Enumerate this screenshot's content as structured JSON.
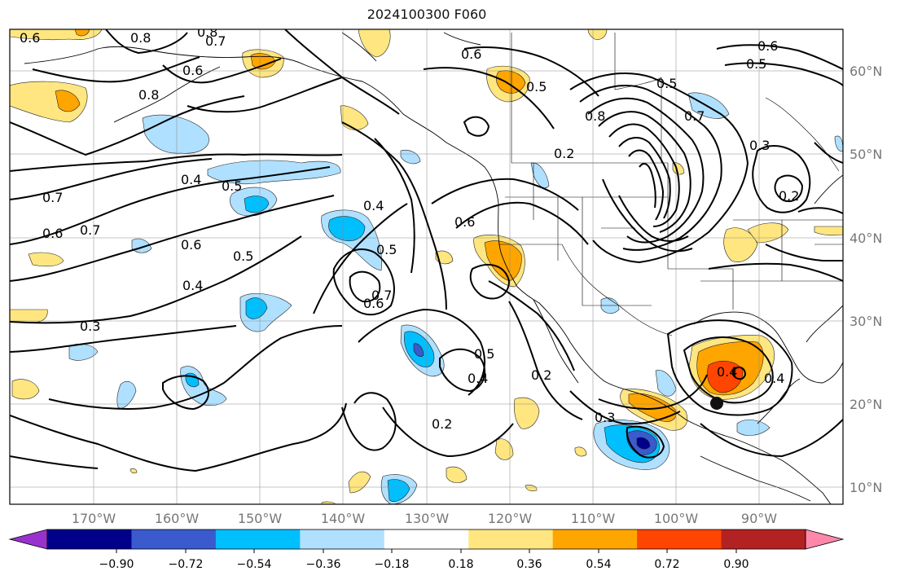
{
  "title": "2024100300 F060",
  "map": {
    "lon_labels": [
      "170°W",
      "160°W",
      "150°W",
      "140°W",
      "130°W",
      "120°W",
      "110°W",
      "100°W",
      "90°W"
    ],
    "lat_labels": [
      "60°N",
      "50°N",
      "40°N",
      "30°N",
      "20°N",
      "10°N"
    ],
    "contour_labels": [
      {
        "text": "0.6"
      },
      {
        "text": "0.8"
      },
      {
        "text": "0.8"
      },
      {
        "text": "0.7"
      },
      {
        "text": "0.6"
      },
      {
        "text": "0.8"
      },
      {
        "text": "0.6"
      },
      {
        "text": "0.5"
      },
      {
        "text": "0.6"
      },
      {
        "text": "0.5"
      },
      {
        "text": "0.5"
      },
      {
        "text": "0.8"
      },
      {
        "text": "0.7"
      },
      {
        "text": "0.2"
      },
      {
        "text": "0.3"
      },
      {
        "text": "0.4"
      },
      {
        "text": "0.5"
      },
      {
        "text": "0.4"
      },
      {
        "text": "0.7"
      },
      {
        "text": "0.6"
      },
      {
        "text": "0.7"
      },
      {
        "text": "0.6"
      },
      {
        "text": "0.5"
      },
      {
        "text": "0.5"
      },
      {
        "text": "0.4"
      },
      {
        "text": "0.7"
      },
      {
        "text": "0.6"
      },
      {
        "text": "0.3"
      },
      {
        "text": "0.2"
      },
      {
        "text": "0.6"
      },
      {
        "text": "0.5"
      },
      {
        "text": "0.2"
      },
      {
        "text": "0.3"
      },
      {
        "text": "0.4"
      },
      {
        "text": "0.4"
      },
      {
        "text": "0.2"
      },
      {
        "text": "0.4"
      }
    ]
  },
  "colorbar": {
    "tick_labels": [
      "−0.90",
      "−0.72",
      "−0.54",
      "−0.36",
      "−0.18",
      "0.18",
      "0.36",
      "0.54",
      "0.72",
      "0.90"
    ],
    "colors": [
      "#9932cc",
      "#00008b",
      "#3a5acd",
      "#00bfff",
      "#b0e0ff",
      "#ffffff",
      "#ffe680",
      "#ffa500",
      "#ff4500",
      "#b22222",
      "#ff88aa"
    ]
  }
}
